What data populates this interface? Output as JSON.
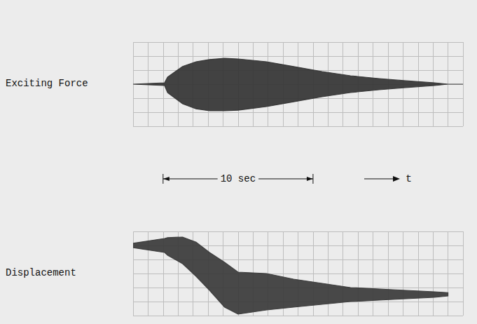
{
  "chart_data": [
    {
      "type": "band",
      "ylabel": "Exciting Force",
      "color": "#333333",
      "grid": true,
      "tick_labels": false,
      "x": [
        -2,
        0.1,
        0.3,
        1.3,
        2.2,
        3.1,
        4.1,
        5.0,
        6.9,
        8.7,
        10.6,
        12.5,
        14.4,
        16.2,
        18.1,
        19.0,
        20.0
      ],
      "upper": [
        0,
        0.05,
        0.25,
        0.63,
        0.8,
        0.88,
        0.92,
        0.9,
        0.8,
        0.63,
        0.45,
        0.3,
        0.2,
        0.12,
        0.05,
        0,
        0
      ],
      "lower": [
        0,
        -0.05,
        -0.3,
        -0.7,
        -0.88,
        -0.95,
        -0.95,
        -0.93,
        -0.8,
        -0.63,
        -0.45,
        -0.3,
        -0.2,
        -0.12,
        -0.05,
        0,
        0
      ],
      "xlim": [
        -2,
        20
      ],
      "xticks": [
        -2,
        -1,
        0,
        1,
        2,
        3,
        4,
        5,
        6,
        7,
        8,
        9,
        10,
        11,
        12,
        13,
        14,
        15,
        16,
        17,
        18,
        19,
        20
      ],
      "ylim": [
        -1.5,
        1.5
      ],
      "yticks": [
        -1.5,
        -1,
        -0.5,
        0,
        0.5,
        1,
        1.5
      ],
      "annotations": [
        {
          "text": "10 sec",
          "x_start": 0,
          "x_end": 10
        },
        {
          "text": "t"
        }
      ]
    },
    {
      "type": "band",
      "ylabel": "Displacement",
      "color": "#3a3a3a",
      "grid": true,
      "tick_labels": false,
      "x": [
        -2,
        0.1,
        0.3,
        1.3,
        2.2,
        3.1,
        4.1,
        5.0,
        6.9,
        8.7,
        10.6,
        12.5,
        14.4,
        16.2,
        18.1,
        19.0,
        20.0
      ],
      "upper": [
        0.08,
        0.25,
        0.28,
        0.3,
        0.12,
        -0.25,
        -0.6,
        -0.95,
        -1.0,
        -1.2,
        -1.35,
        -1.5,
        -1.55,
        -1.6,
        -1.65,
        -1.68,
        null
      ],
      "lower": [
        -0.08,
        -0.25,
        -0.35,
        -0.65,
        -1.1,
        -1.6,
        -2.2,
        -2.45,
        -2.3,
        -2.2,
        -2.1,
        -2.0,
        -1.95,
        -1.9,
        -1.85,
        -1.8,
        null
      ],
      "xlim": [
        -2,
        20
      ],
      "xticks": [
        -2,
        -1,
        0,
        1,
        2,
        3,
        4,
        5,
        6,
        7,
        8,
        9,
        10,
        11,
        12,
        13,
        14,
        15,
        16,
        17,
        18,
        19,
        20
      ],
      "ylim": [
        -2.5,
        0.5
      ],
      "yticks": [
        -2.5,
        -2,
        -1.5,
        -1,
        -0.5,
        0,
        0.5
      ]
    }
  ]
}
